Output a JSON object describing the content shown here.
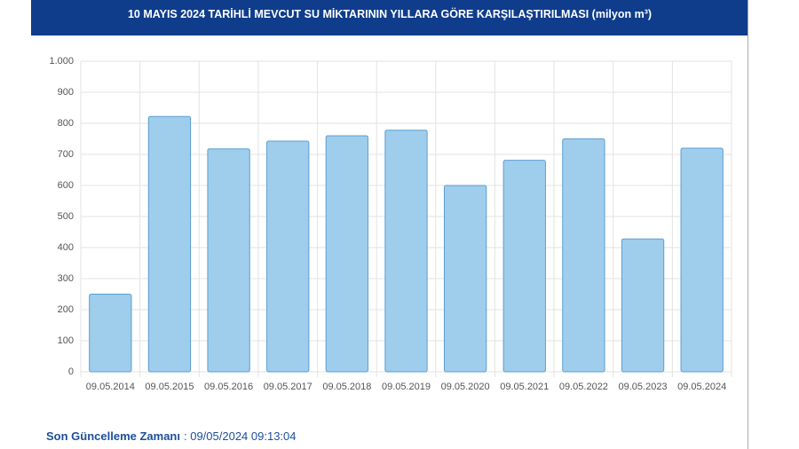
{
  "chart_data": {
    "type": "bar",
    "title": "10 MAYIS 2024 TARİHLİ MEVCUT SU MİKTARININ YILLARA GÖRE KARŞILAŞTIRILMASI (milyon m³)",
    "categories": [
      "09.05.2014",
      "09.05.2015",
      "09.05.2016",
      "09.05.2017",
      "09.05.2018",
      "09.05.2019",
      "09.05.2020",
      "09.05.2021",
      "09.05.2022",
      "09.05.2023",
      "09.05.2024"
    ],
    "values": [
      250,
      822,
      718,
      743,
      760,
      778,
      600,
      681,
      750,
      428,
      720
    ],
    "color": "#9fcdec",
    "ylim": [
      0,
      1000
    ],
    "yticks": [
      0,
      100,
      200,
      300,
      400,
      500,
      600,
      700,
      800,
      900,
      {
        "value": 1000,
        "label": "1.000"
      }
    ],
    "grid": true
  },
  "footer": {
    "label": "Son Güncelleme Zamanı",
    "value": ": 09/05/2024 09:13:04"
  }
}
